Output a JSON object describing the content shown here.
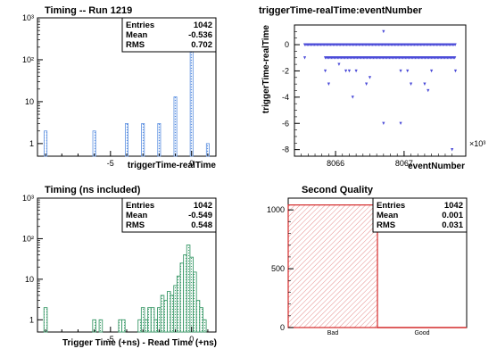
{
  "chart_data": [
    {
      "type": "bar",
      "title": "Timing -- Run 1219",
      "xlabel": "triggerTime-realTime",
      "ylabel": "",
      "xlim": [
        -9.5,
        1.5
      ],
      "ylim_log": [
        0.5,
        1000
      ],
      "log_y": true,
      "tick_labels_x": [
        "-5",
        "0"
      ],
      "tick_labels_y": [
        "1",
        "10",
        "10²",
        "10³"
      ],
      "x": [
        -9,
        -6,
        -4,
        -3,
        -2,
        -1,
        0,
        1
      ],
      "values": [
        2,
        2,
        3,
        3,
        3,
        13,
        480,
        1
      ],
      "color": "#5b8fe0",
      "stats": {
        "entries_label": "Entries",
        "entries": "1042",
        "mean_label": "Mean",
        "mean": "-0.536",
        "rms_label": "RMS",
        "rms": "0.702"
      }
    },
    {
      "type": "scatter",
      "title": "triggerTime-realTime:eventNumber",
      "xlabel": "eventNumber",
      "ylabel": "triggerTime-realTime",
      "xlim": [
        8065.4,
        8067.9
      ],
      "ylim": [
        -8.5,
        1.5
      ],
      "x_multiplier": "×10³",
      "tick_labels_x": [
        "8066",
        "8067"
      ],
      "tick_labels_y": [
        "0",
        "-2",
        "-4",
        "-6",
        "-8"
      ],
      "color": "#4b4bd8",
      "dense_rows": [
        {
          "y": 0,
          "x_from": 8065.55,
          "x_to": 8067.75
        },
        {
          "y": -1,
          "x_from": 8065.85,
          "x_to": 8067.75
        }
      ],
      "points": [
        [
          8065.55,
          -1
        ],
        [
          8065.85,
          -2
        ],
        [
          8065.9,
          -3
        ],
        [
          8066.05,
          -1.5
        ],
        [
          8066.15,
          -2
        ],
        [
          8066.2,
          -2
        ],
        [
          8066.25,
          -4
        ],
        [
          8066.3,
          -2
        ],
        [
          8066.45,
          -3
        ],
        [
          8066.5,
          -2.5
        ],
        [
          8066.7,
          1
        ],
        [
          8066.7,
          -6
        ],
        [
          8066.95,
          -6
        ],
        [
          8066.95,
          -2
        ],
        [
          8067.05,
          -2
        ],
        [
          8067.1,
          -3
        ],
        [
          8067.3,
          -3
        ],
        [
          8067.35,
          -3.5
        ],
        [
          8067.4,
          -2
        ],
        [
          8067.7,
          -8
        ],
        [
          8067.75,
          -2
        ]
      ]
    },
    {
      "type": "area",
      "title": "Timing (ns included)",
      "xlabel": "Trigger Time (+ns) - Read Time (+ns)",
      "ylabel": "",
      "xlim": [
        -9.5,
        1.5
      ],
      "ylim_log": [
        0.5,
        1000
      ],
      "log_y": true,
      "tick_labels_x": [
        "-5",
        "0"
      ],
      "tick_labels_y": [
        "1",
        "10",
        "10²",
        "10³"
      ],
      "bin_width": 0.2,
      "x": [
        -9.0,
        -6.0,
        -5.6,
        -4.4,
        -4.2,
        -3.2,
        -3.0,
        -2.8,
        -2.6,
        -2.4,
        -2.2,
        -2.0,
        -1.8,
        -1.6,
        -1.4,
        -1.2,
        -1.0,
        -0.8,
        -0.6,
        -0.4,
        -0.2,
        0.0,
        0.2,
        0.4,
        0.6,
        0.8
      ],
      "values": [
        2,
        1,
        1,
        1,
        1,
        1,
        2,
        1,
        2,
        2,
        1,
        2,
        4,
        3,
        5,
        4,
        7,
        12,
        25,
        40,
        70,
        35,
        15,
        3,
        2,
        1
      ],
      "color": "#3c9a6a",
      "stats": {
        "entries_label": "Entries",
        "entries": "1042",
        "mean_label": "Mean",
        "mean": "-0.549",
        "rms_label": "RMS",
        "rms": "0.548"
      }
    },
    {
      "type": "bar",
      "title": "Second Quality",
      "xlabel": "",
      "ylabel": "",
      "categories": [
        "Bad",
        "Good"
      ],
      "values": [
        1042,
        0
      ],
      "ylim": [
        0,
        1100
      ],
      "tick_labels_y": [
        "0",
        "500",
        "1000"
      ],
      "color": "#d42a2a",
      "stats": {
        "entries_label": "Entries",
        "entries": "1042",
        "mean_label": "Mean",
        "mean": "0.001",
        "rms_label": "RMS",
        "rms": "0.031"
      }
    }
  ]
}
